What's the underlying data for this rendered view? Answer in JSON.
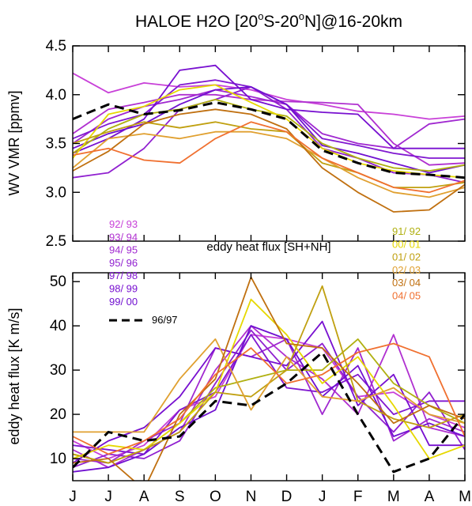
{
  "title_prefix": "HALOE H2O [20",
  "title_mid1": "S-20",
  "title_suffix": "N]@16-20km",
  "title_deg": "o",
  "months": [
    "J",
    "J",
    "A",
    "S",
    "O",
    "N",
    "D",
    "J",
    "F",
    "M",
    "A",
    "M"
  ],
  "mid_label": "eddy heat flux [SH+NH]",
  "chart_data": [
    {
      "type": "line",
      "ylabel": "WV VMR [ppmv]",
      "ylim": [
        2.5,
        4.5
      ],
      "yticks": [
        2.5,
        3.0,
        3.5,
        4.0,
        4.5
      ],
      "ytick_labels": [
        "2.5",
        "3.0",
        "3.5",
        "4.0",
        "4.5"
      ],
      "categories": [
        "J",
        "J",
        "A",
        "S",
        "O",
        "N",
        "D",
        "J",
        "F",
        "M",
        "A",
        "M"
      ],
      "series": [
        {
          "name": "92/ 93",
          "color": "#c840d8",
          "values": [
            4.22,
            4.02,
            4.12,
            4.08,
            4.1,
            4.05,
            3.95,
            3.9,
            3.83,
            3.8,
            3.75,
            3.78
          ]
        },
        {
          "name": "93/ 94",
          "color": "#b030d0",
          "values": [
            3.6,
            3.85,
            3.92,
            4.0,
            4.0,
            3.95,
            3.93,
            3.92,
            3.9,
            3.5,
            3.28,
            3.3
          ]
        },
        {
          "name": "94/ 95",
          "color": "#a028d0",
          "values": [
            3.5,
            3.75,
            3.88,
            3.95,
            4.05,
            3.98,
            3.9,
            3.6,
            3.5,
            3.45,
            3.7,
            3.75
          ]
        },
        {
          "name": "95/ 96",
          "color": "#9020d0",
          "values": [
            3.15,
            3.2,
            3.45,
            3.85,
            3.95,
            4.08,
            3.85,
            3.45,
            3.35,
            3.2,
            3.18,
            3.1
          ]
        },
        {
          "name": "97/ 98",
          "color": "#8018d0",
          "values": [
            3.55,
            3.7,
            3.8,
            4.1,
            4.15,
            4.08,
            3.9,
            3.55,
            3.48,
            3.4,
            3.35,
            3.35
          ]
        },
        {
          "name": "98/ 99",
          "color": "#7810d0",
          "values": [
            3.4,
            3.55,
            3.75,
            4.25,
            4.3,
            3.95,
            3.85,
            3.82,
            3.8,
            3.45,
            3.45,
            3.45
          ]
        },
        {
          "name": "99/ 00",
          "color": "#7010d0",
          "values": [
            3.45,
            3.6,
            3.7,
            3.9,
            4.05,
            4.08,
            3.9,
            3.48,
            3.4,
            3.3,
            3.2,
            3.28
          ]
        },
        {
          "name": "91/ 92",
          "color": "#b0b010",
          "values": [
            3.4,
            3.65,
            3.8,
            3.85,
            3.95,
            3.85,
            3.78,
            3.5,
            3.35,
            3.25,
            3.22,
            3.28
          ]
        },
        {
          "name": "00/ 01",
          "color": "#e6d800",
          "values": [
            3.35,
            3.8,
            3.88,
            4.05,
            4.1,
            3.92,
            3.75,
            3.45,
            3.3,
            3.22,
            3.18,
            3.15
          ]
        },
        {
          "name": "01/ 02",
          "color": "#c0a010",
          "values": [
            3.5,
            3.62,
            3.72,
            3.66,
            3.72,
            3.65,
            3.62,
            3.3,
            3.2,
            3.05,
            3.05,
            3.1
          ]
        },
        {
          "name": "02/ 03",
          "color": "#e0a030",
          "values": [
            3.25,
            3.55,
            3.6,
            3.55,
            3.62,
            3.62,
            3.55,
            3.35,
            3.15,
            3.0,
            2.95,
            3.05
          ]
        },
        {
          "name": "03/ 04",
          "color": "#c07010",
          "values": [
            3.22,
            3.42,
            3.7,
            3.8,
            3.85,
            3.8,
            3.65,
            3.25,
            3.0,
            2.8,
            2.82,
            3.08
          ]
        },
        {
          "name": "04/ 05",
          "color": "#f07030",
          "values": [
            3.38,
            3.45,
            3.33,
            3.3,
            3.55,
            3.72,
            3.62,
            3.35,
            3.2,
            3.05,
            3.0,
            3.12
          ]
        },
        {
          "name": "96/97",
          "color": "#000000",
          "dashed": true,
          "values": [
            3.75,
            3.9,
            3.8,
            3.84,
            3.92,
            3.85,
            3.75,
            3.43,
            3.3,
            3.2,
            3.18,
            3.15
          ]
        }
      ]
    },
    {
      "type": "line",
      "ylabel": "eddy heat flux [K m/s]",
      "ylim": [
        5,
        52
      ],
      "yticks": [
        10,
        20,
        30,
        40,
        50
      ],
      "ytick_labels": [
        "10",
        "20",
        "30",
        "40",
        "50"
      ],
      "categories": [
        "J",
        "J",
        "A",
        "S",
        "O",
        "N",
        "D",
        "J",
        "F",
        "M",
        "A",
        "M"
      ],
      "series": [
        {
          "name": "92/ 93",
          "color": "#c840d8",
          "values": [
            14,
            10,
            13,
            21,
            24,
            38,
            37,
            35,
            24,
            25,
            20,
            17
          ]
        },
        {
          "name": "93/ 94",
          "color": "#b030d0",
          "values": [
            12,
            8,
            12,
            16,
            30,
            40,
            33,
            28,
            20,
            38,
            17,
            15
          ]
        },
        {
          "name": "94/ 95",
          "color": "#a028d0",
          "values": [
            10,
            9,
            14,
            18,
            35,
            33,
            37,
            20,
            35,
            14,
            19,
            16
          ]
        },
        {
          "name": "95/ 96",
          "color": "#9020d0",
          "values": [
            8,
            11,
            10,
            14,
            27,
            39,
            30,
            36,
            24,
            16,
            25,
            12
          ]
        },
        {
          "name": "97/ 98",
          "color": "#8018d0",
          "values": [
            13,
            12,
            11,
            21,
            25,
            38,
            26,
            25,
            29,
            20,
            23,
            23
          ]
        },
        {
          "name": "98/ 99",
          "color": "#7810d0",
          "values": [
            9,
            14,
            17,
            24,
            35,
            33,
            31,
            41,
            22,
            29,
            13,
            13
          ]
        },
        {
          "name": "99/ 00",
          "color": "#7010d0",
          "values": [
            7,
            8,
            11,
            17,
            21,
            40,
            37,
            24,
            31,
            15,
            18,
            15
          ]
        },
        {
          "name": "91/ 92",
          "color": "#b0b010",
          "values": [
            11,
            9,
            12,
            18,
            26,
            28,
            30,
            30,
            37,
            27,
            22,
            18
          ]
        },
        {
          "name": "00/ 01",
          "color": "#e6d800",
          "values": [
            10,
            13,
            12,
            18,
            25,
            46,
            38,
            27,
            33,
            22,
            10,
            13
          ]
        },
        {
          "name": "01/ 02",
          "color": "#c0a010",
          "values": [
            11,
            9,
            12,
            16,
            25,
            24,
            30,
            49,
            23,
            19,
            17,
            20
          ]
        },
        {
          "name": "02/ 03",
          "color": "#e0a030",
          "values": [
            16,
            16,
            16,
            28,
            37,
            21,
            33,
            24,
            23,
            26,
            20,
            18
          ]
        },
        {
          "name": "03/ 04",
          "color": "#c07010",
          "values": [
            9,
            10,
            3,
            20,
            28,
            51,
            36,
            35,
            27,
            18,
            22,
            19
          ]
        },
        {
          "name": "04/ 05",
          "color": "#f07030",
          "values": [
            15,
            11,
            14,
            19,
            29,
            35,
            27,
            29,
            34,
            36,
            33,
            15
          ]
        },
        {
          "name": "96/97",
          "color": "#000000",
          "dashed": true,
          "values": [
            8,
            16,
            14,
            15,
            23,
            22,
            27,
            34,
            20,
            7,
            10,
            20
          ]
        }
      ]
    }
  ]
}
